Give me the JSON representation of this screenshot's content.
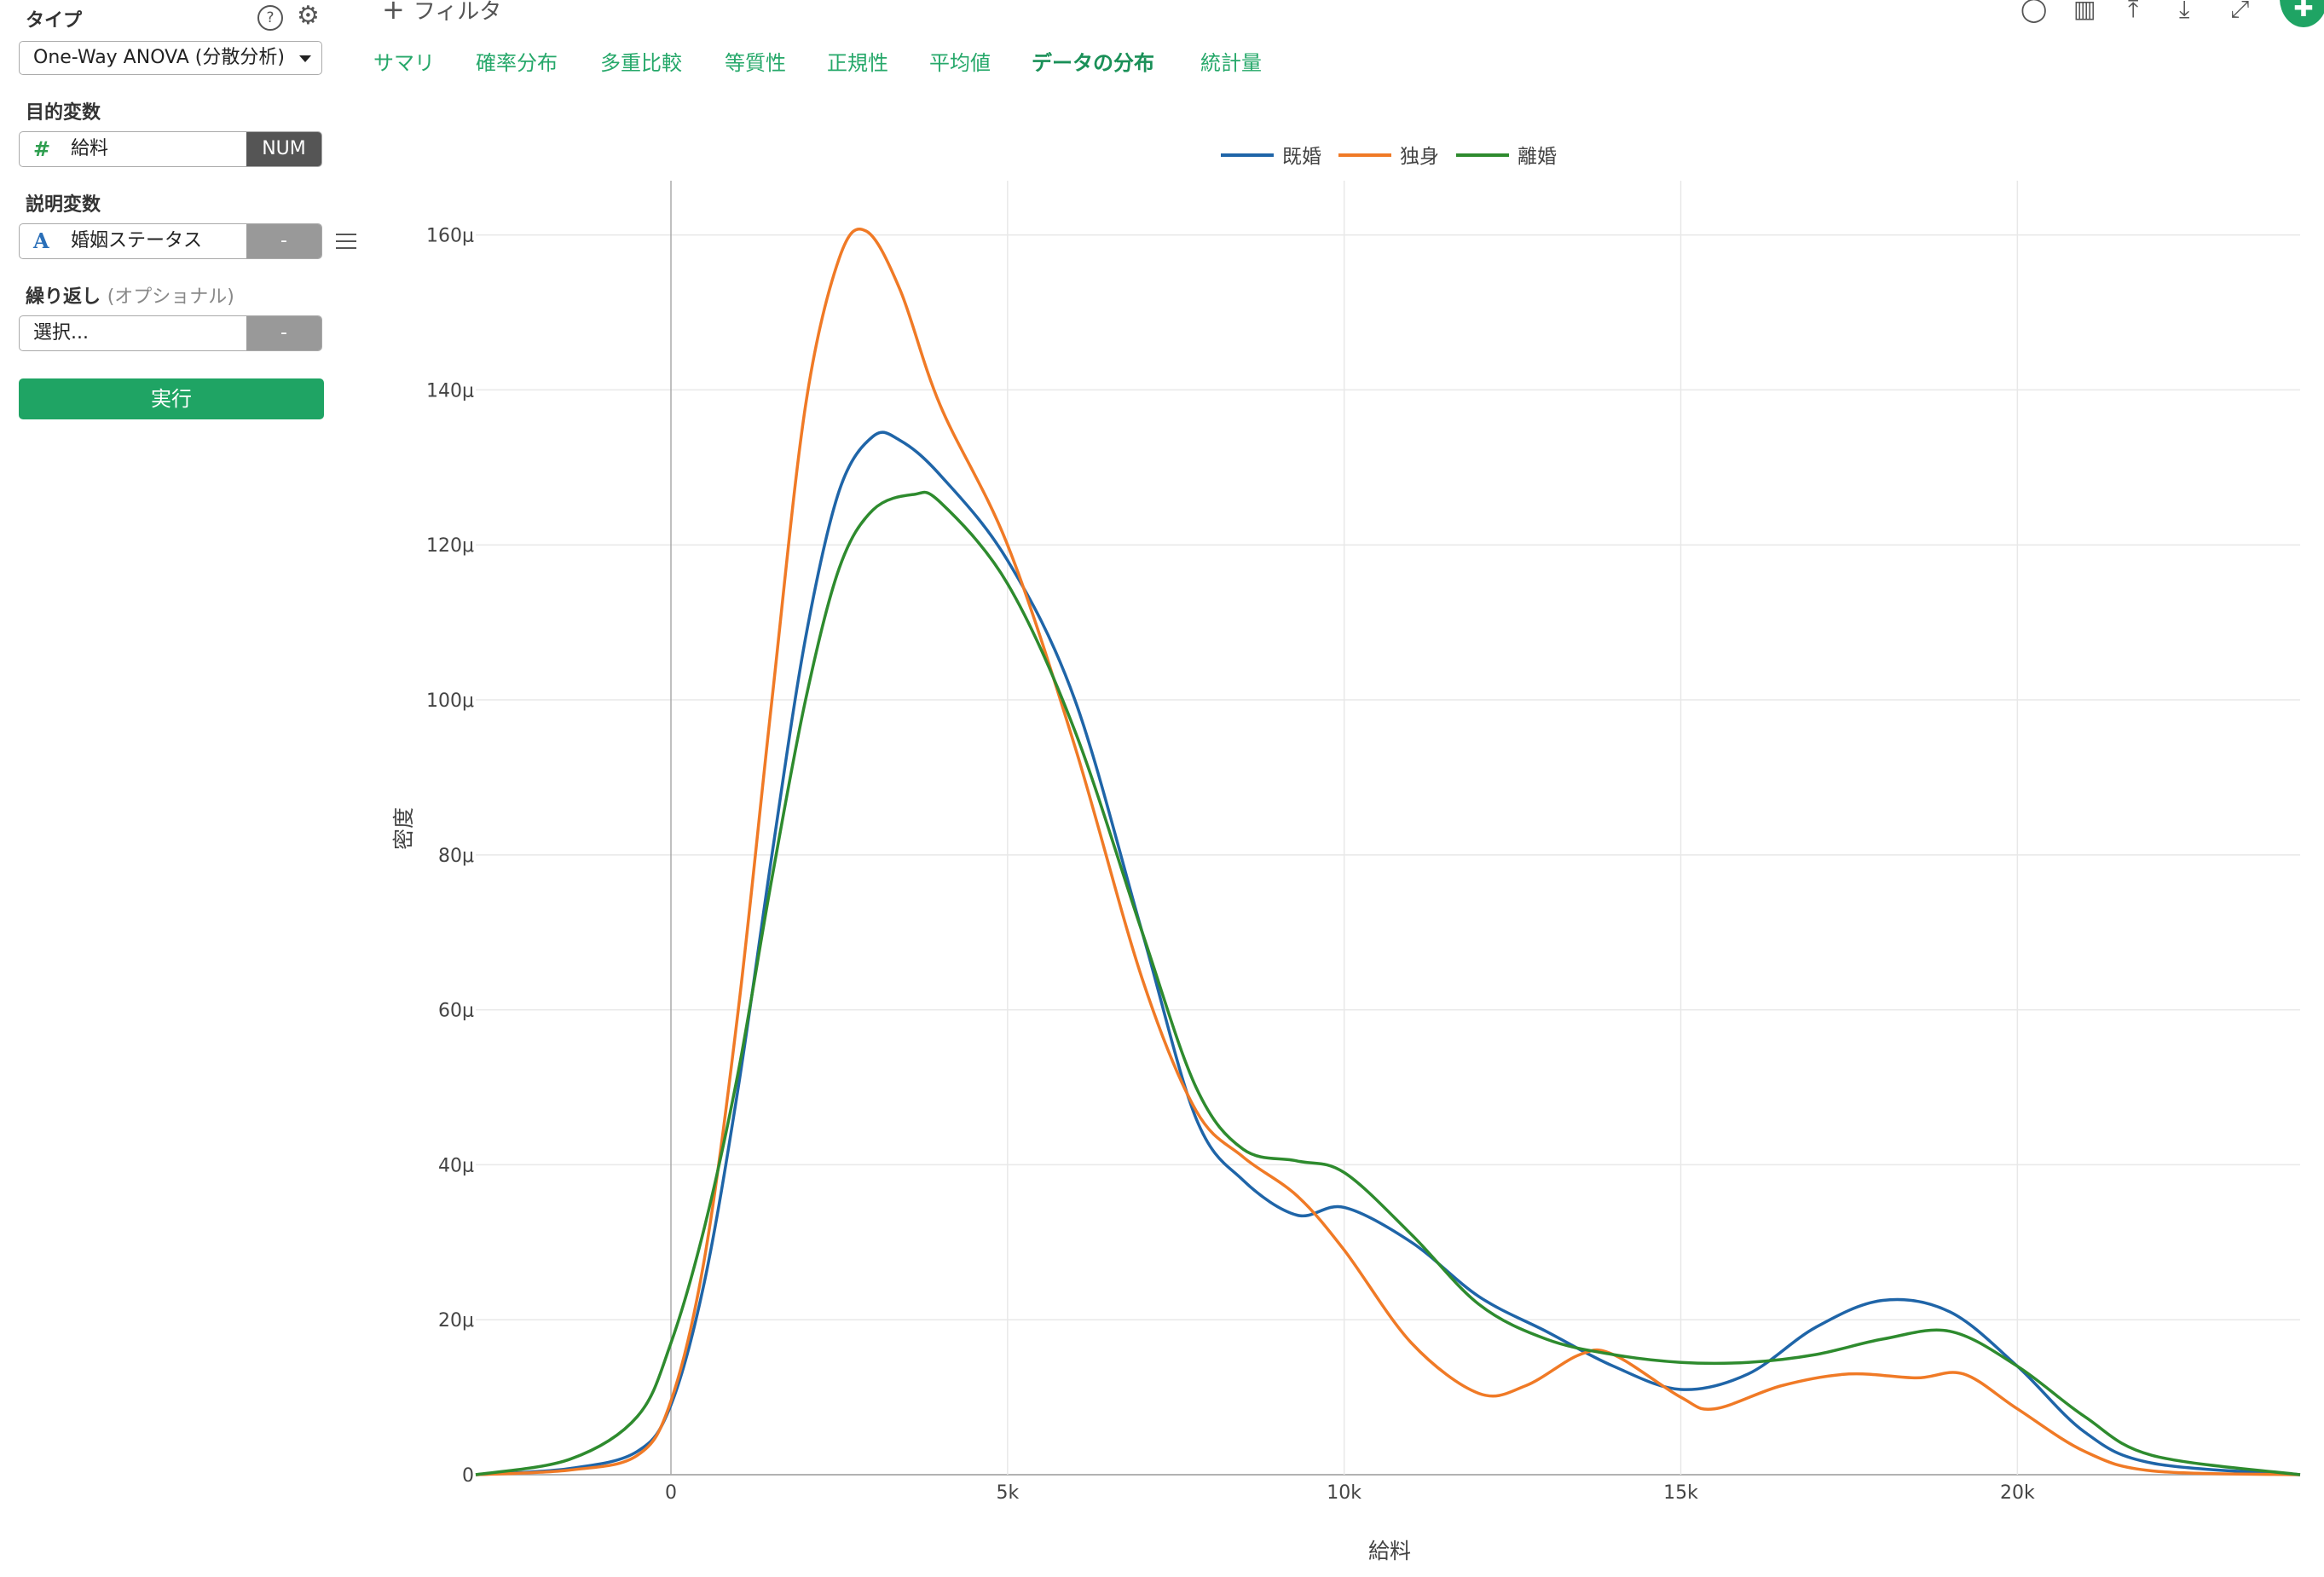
{
  "left_panel": {
    "type_label": "タイプ",
    "help_icon": "?",
    "type_value": "One-Way ANOVA (分散分析)",
    "target_label": "目的変数",
    "target_icon": "#",
    "target_value": "給料",
    "target_tag": "NUM",
    "explanatory_label": "説明変数",
    "explanatory_icon": "A",
    "explanatory_value": "婚姻ステータス",
    "explanatory_tag": "-",
    "repeat_label": "繰り返し",
    "repeat_optional": "(オプショナル)",
    "repeat_value": "選択...",
    "repeat_tag": "-",
    "run_button": "実行"
  },
  "toolbar": {
    "filter_label": "フィルタ",
    "icons": [
      "comment-icon",
      "chart-icon",
      "upload-icon",
      "download-icon",
      "expand-icon",
      "pin-icon"
    ]
  },
  "tabs": [
    {
      "label": "サマリ",
      "active": false
    },
    {
      "label": "確率分布",
      "active": false
    },
    {
      "label": "多重比較",
      "active": false
    },
    {
      "label": "等質性",
      "active": false
    },
    {
      "label": "正規性",
      "active": false
    },
    {
      "label": "平均値",
      "active": false
    },
    {
      "label": "データの分布",
      "active": true
    },
    {
      "label": "統計量",
      "active": false
    }
  ],
  "colors": {
    "accent": "#1fa464",
    "tab_text": "#26a86a",
    "num_tag": "#555555",
    "dash_tag": "#999999",
    "icon_num": "#2e9e4f",
    "icon_text": "#2a6fb8"
  },
  "chart_data": {
    "type": "line",
    "title": "",
    "xlabel": "給料",
    "ylabel": "密度",
    "xlim": [
      -2900,
      24200
    ],
    "ylim": [
      0,
      0.000167
    ],
    "x_ticks": [
      0,
      5000,
      10000,
      15000,
      20000
    ],
    "x_tick_labels": [
      "0",
      "5k",
      "10k",
      "15k",
      "20k"
    ],
    "y_ticks": [
      0,
      2e-05,
      4e-05,
      6e-05,
      8e-05,
      0.0001,
      0.00012,
      0.00014,
      0.00016
    ],
    "y_tick_labels": [
      "0",
      "20μ",
      "40μ",
      "60μ",
      "80μ",
      "100μ",
      "120μ",
      "140μ",
      "160μ"
    ],
    "grid": true,
    "legend_position": "top-center",
    "series": [
      {
        "name": "既婚",
        "color": "#1f65a8",
        "points": [
          [
            -2900,
            0
          ],
          [
            -1500,
            8e-07
          ],
          [
            -500,
            3e-06
          ],
          [
            0,
            9e-06
          ],
          [
            500,
            2.5e-05
          ],
          [
            1000,
            5e-05
          ],
          [
            1500,
            8e-05
          ],
          [
            2000,
            0.000108
          ],
          [
            2500,
            0.000127
          ],
          [
            3000,
            0.000134
          ],
          [
            3400,
            0.0001335
          ],
          [
            4000,
            0.000129
          ],
          [
            5000,
            0.000118
          ],
          [
            6000,
            0.0001
          ],
          [
            7000,
            7e-05
          ],
          [
            7800,
            4.6e-05
          ],
          [
            8500,
            3.8e-05
          ],
          [
            9300,
            3.35e-05
          ],
          [
            10000,
            3.45e-05
          ],
          [
            11000,
            3e-05
          ],
          [
            12000,
            2.3e-05
          ],
          [
            13000,
            1.85e-05
          ],
          [
            14000,
            1.4e-05
          ],
          [
            15000,
            1.1e-05
          ],
          [
            16000,
            1.3e-05
          ],
          [
            17000,
            1.9e-05
          ],
          [
            18000,
            2.25e-05
          ],
          [
            19000,
            2.1e-05
          ],
          [
            20000,
            1.4e-05
          ],
          [
            21000,
            5.5e-06
          ],
          [
            22000,
            1.5e-06
          ],
          [
            24200,
            0
          ]
        ]
      },
      {
        "name": "独身",
        "color": "#f07a26",
        "points": [
          [
            -2900,
            0
          ],
          [
            -1500,
            6e-07
          ],
          [
            -500,
            2.5e-06
          ],
          [
            0,
            9.5e-06
          ],
          [
            500,
            2.8e-05
          ],
          [
            1000,
            6e-05
          ],
          [
            1500,
            0.0001
          ],
          [
            2000,
            0.000138
          ],
          [
            2500,
            0.000157
          ],
          [
            2900,
            0.0001605
          ],
          [
            3400,
            0.000153
          ],
          [
            4000,
            0.000138
          ],
          [
            5000,
            0.00012
          ],
          [
            6000,
            9.4e-05
          ],
          [
            7000,
            6.4e-05
          ],
          [
            7800,
            4.7e-05
          ],
          [
            8500,
            4.1e-05
          ],
          [
            9300,
            3.6e-05
          ],
          [
            10000,
            2.9e-05
          ],
          [
            11000,
            1.7e-05
          ],
          [
            12000,
            1.05e-05
          ],
          [
            12700,
            1.15e-05
          ],
          [
            13500,
            1.55e-05
          ],
          [
            14000,
            1.55e-05
          ],
          [
            15000,
            1e-05
          ],
          [
            15500,
            8.5e-06
          ],
          [
            16500,
            1.15e-05
          ],
          [
            17500,
            1.3e-05
          ],
          [
            18500,
            1.25e-05
          ],
          [
            19200,
            1.3e-05
          ],
          [
            20000,
            8.5e-06
          ],
          [
            21000,
            3e-06
          ],
          [
            22000,
            5e-07
          ],
          [
            24200,
            0
          ]
        ]
      },
      {
        "name": "離婚",
        "color": "#2e8b2e",
        "points": [
          [
            -2900,
            0
          ],
          [
            -1500,
            2e-06
          ],
          [
            -500,
            7.5e-06
          ],
          [
            0,
            1.7e-05
          ],
          [
            500,
            3.2e-05
          ],
          [
            1000,
            5.2e-05
          ],
          [
            1500,
            7.7e-05
          ],
          [
            2000,
            0.0001
          ],
          [
            2500,
            0.000117
          ],
          [
            3000,
            0.0001245
          ],
          [
            3600,
            0.0001265
          ],
          [
            4000,
            0.0001255
          ],
          [
            5000,
            0.000115
          ],
          [
            6000,
            9.6e-05
          ],
          [
            7000,
            7e-05
          ],
          [
            7800,
            5e-05
          ],
          [
            8500,
            4.2e-05
          ],
          [
            9300,
            4.05e-05
          ],
          [
            10000,
            3.9e-05
          ],
          [
            11000,
            3.1e-05
          ],
          [
            12000,
            2.2e-05
          ],
          [
            13000,
            1.75e-05
          ],
          [
            14000,
            1.55e-05
          ],
          [
            15000,
            1.45e-05
          ],
          [
            16000,
            1.45e-05
          ],
          [
            17000,
            1.55e-05
          ],
          [
            18000,
            1.75e-05
          ],
          [
            19000,
            1.85e-05
          ],
          [
            20000,
            1.4e-05
          ],
          [
            21000,
            7.5e-06
          ],
          [
            22000,
            2.5e-06
          ],
          [
            24200,
            0
          ]
        ]
      }
    ]
  }
}
